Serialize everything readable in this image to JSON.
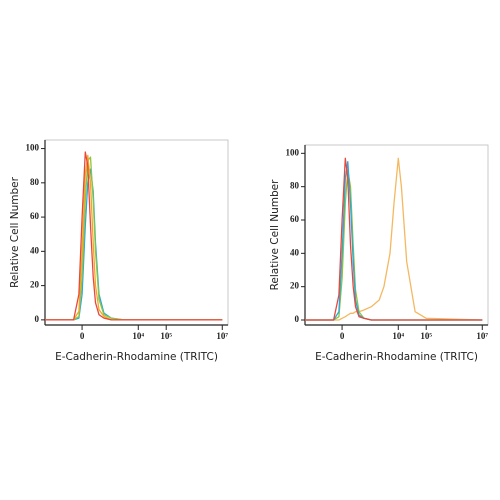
{
  "chart_data": [
    {
      "type": "line",
      "xlabel": "E-Cadherin-Rhodamine (TRITC)",
      "ylabel": "Relative Cell Number",
      "xscale": "symlog",
      "linthresh": 100,
      "xlim": [
        -2000,
        16000000
      ],
      "ylim": [
        -3,
        105
      ],
      "xticks": [
        0,
        {
          "value": 10000,
          "label": "10⁴"
        },
        {
          "value": 100000,
          "label": "10⁵"
        },
        {
          "value": 10000000,
          "label": "10⁷"
        }
      ],
      "yticks": [
        0,
        20,
        40,
        60,
        80,
        100
      ],
      "x": [
        -2000,
        -500,
        -100,
        -30,
        0,
        30,
        60,
        100,
        150,
        200,
        300,
        500,
        1000,
        3000,
        10000,
        100000,
        10000000
      ],
      "series": [
        {
          "color": "#2aa7e0",
          "values": [
            0,
            0,
            0,
            1,
            15,
            55,
            80,
            88,
            75,
            45,
            15,
            4,
            1,
            0,
            0,
            0,
            0
          ]
        },
        {
          "color": "#8cc63f",
          "values": [
            0,
            0,
            0,
            2,
            25,
            70,
            93,
            95,
            70,
            40,
            12,
            3,
            1,
            0,
            0,
            0,
            0
          ]
        },
        {
          "color": "#f5a623",
          "values": [
            0,
            0,
            0,
            5,
            40,
            85,
            96,
            80,
            45,
            20,
            6,
            2,
            0,
            0,
            0,
            0,
            0
          ]
        },
        {
          "color": "#e8473d",
          "values": [
            0,
            0,
            0,
            15,
            60,
            98,
            90,
            55,
            25,
            10,
            3,
            1,
            0,
            0,
            0,
            0,
            0
          ]
        }
      ]
    },
    {
      "type": "line",
      "xlabel": "E-Cadherin-Rhodamine (TRITC)",
      "ylabel": "Relative Cell Number",
      "xscale": "symlog",
      "linthresh": 100,
      "xlim": [
        -2000,
        16000000
      ],
      "ylim": [
        -3,
        105
      ],
      "xticks": [
        0,
        {
          "value": 10000,
          "label": "10⁴"
        },
        {
          "value": 100000,
          "label": "10⁵"
        },
        {
          "value": 10000000,
          "label": "10⁷"
        }
      ],
      "yticks": [
        0,
        20,
        40,
        60,
        80,
        100
      ],
      "x": [
        -2000,
        -500,
        -100,
        -30,
        0,
        30,
        60,
        100,
        150,
        200,
        300,
        500,
        1000,
        2000,
        3000,
        5000,
        7000,
        10000,
        13000,
        20000,
        40000,
        100000,
        10000000
      ],
      "series": [
        {
          "color": "#f4b860",
          "values": [
            0,
            0,
            0,
            0,
            1,
            2,
            3,
            4,
            4,
            5,
            5,
            6,
            8,
            12,
            20,
            40,
            70,
            97,
            80,
            35,
            5,
            1,
            0
          ]
        },
        {
          "color": "#8cc63f",
          "values": [
            0,
            0,
            0,
            2,
            25,
            70,
            90,
            80,
            45,
            18,
            5,
            1,
            0,
            0,
            0,
            0,
            0,
            0,
            0,
            0,
            0,
            0,
            0
          ]
        },
        {
          "color": "#2aa7e0",
          "values": [
            0,
            0,
            0,
            5,
            40,
            85,
            95,
            70,
            35,
            12,
            3,
            1,
            0,
            0,
            0,
            0,
            0,
            0,
            0,
            0,
            0,
            0,
            0
          ]
        },
        {
          "color": "#e8473d",
          "values": [
            0,
            0,
            0,
            15,
            60,
            97,
            85,
            45,
            20,
            8,
            2,
            1,
            0,
            0,
            0,
            0,
            0,
            0,
            0,
            0,
            0,
            0,
            0
          ]
        }
      ]
    }
  ]
}
